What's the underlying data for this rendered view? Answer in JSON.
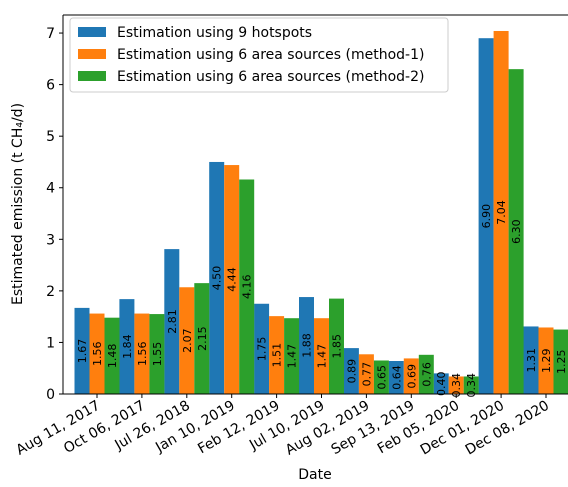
{
  "chart_data": {
    "type": "bar",
    "ylabel": "Estimated emission (t CH₄/d)",
    "xlabel": "Date",
    "categories": [
      "Aug 11, 2017",
      "Oct 06, 2017",
      "Jul 26, 2018",
      "Jan 10, 2019",
      "Feb 12, 2019",
      "Jul 10, 2019",
      "Aug 02, 2019",
      "Sep 13, 2019",
      "Feb 05, 2020",
      "Dec 01, 2020",
      "Dec 08, 2020"
    ],
    "series": [
      {
        "name": "Estimation using 9 hotspots",
        "color": "#1f77b4",
        "values": [
          1.67,
          1.84,
          2.81,
          4.5,
          1.75,
          1.88,
          0.89,
          0.64,
          0.4,
          6.9,
          1.31
        ],
        "value_labels": [
          "1.67",
          "1.84",
          "2.81",
          "4.50",
          "1.75",
          "1.88",
          "0.89",
          "0.64",
          "0.40",
          "6.90",
          "1.31"
        ]
      },
      {
        "name": "Estimation using 6 area sources (method-1)",
        "color": "#ff7f0e",
        "values": [
          1.56,
          1.56,
          2.07,
          4.44,
          1.51,
          1.47,
          0.77,
          0.69,
          0.34,
          7.04,
          1.29
        ],
        "value_labels": [
          "1.56",
          "1.56",
          "2.07",
          "4.44",
          "1.51",
          "1.47",
          "0.77",
          "0.69",
          "0.34",
          "7.04",
          "1.29"
        ]
      },
      {
        "name": "Estimation using 6 area sources (method-2)",
        "color": "#2ca02c",
        "values": [
          1.48,
          1.55,
          2.15,
          4.16,
          1.47,
          1.85,
          0.65,
          0.76,
          0.34,
          6.3,
          1.25
        ],
        "value_labels": [
          "1.48",
          "1.55",
          "2.15",
          "4.16",
          "1.47",
          "1.85",
          "0.65",
          "0.76",
          "0.34",
          "6.30",
          "1.25"
        ]
      }
    ],
    "ylim": [
      0,
      7.35
    ],
    "yticks": [
      0,
      1,
      2,
      3,
      4,
      5,
      6,
      7
    ],
    "legend": "upper-left"
  }
}
